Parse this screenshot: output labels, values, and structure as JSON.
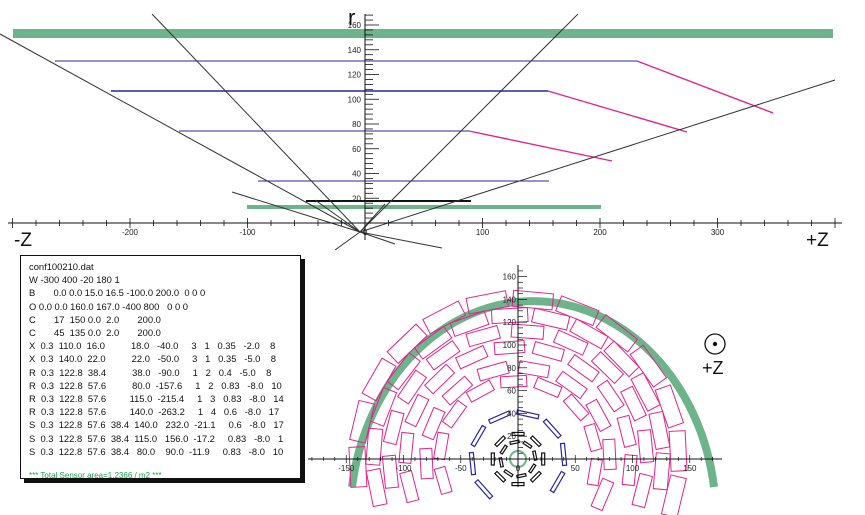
{
  "top_view": {
    "r_label": "r",
    "neg_z_label": "-Z",
    "pos_z_label": "+Z",
    "r_ticks": [
      "20",
      "40",
      "60",
      "80",
      "100",
      "120",
      "140",
      "160"
    ],
    "z_ticks": [
      "-200",
      "-100",
      "0",
      "100",
      "200",
      "300"
    ]
  },
  "bottom_view": {
    "plus_z_label": "+Z",
    "y_ticks": [
      "20",
      "40",
      "60",
      "80",
      "100",
      "120",
      "140",
      "160"
    ],
    "x_ticks": [
      "-150",
      "-100",
      "-50",
      "0",
      "50",
      "100",
      "150"
    ]
  },
  "config": {
    "lines": [
      "conf100210.dat",
      "W -300 400 -20 180 1",
      "B       0.0 0.0 15.0 16.5 -100.0 200.0  0 0 0",
      "O 0.0 0.0 160.0 167.0 -400 800   0 0 0",
      "C       17  150 0.0  2.0       200.0",
      "C       45  135 0.0  2.0       200.0",
      "X  0.3  110.0  16.0          18.0   -40.0     3   1   0.35   -2.0    8",
      "X  0.3  140.0  22.0          22.0   -50.0     3   1   0.35   -5.0    8",
      "R  0.3  122.8  38.4          38.0   -90.0     1   2   0.4   -5.0    8",
      "R  0.3  122.8  57.6          80.0  -157.6     1   2   0.83   -8.0   10",
      "R  0.3  122.8  57.6         115.0  -215.4     1   3   0.83   -8.0   14",
      "R  0.3  122.8  57.6         140.0  -263.2     1   4   0.6   -8.0   17",
      "S  0.3  122.8  57.6  38.4  140.0   232.0  -21.1     0.6   -8.0   17",
      "S  0.3  122.8  57.6  38.4  115.0   156.0  -17.2     0.83   -8.0   1",
      "S  0.3  122.8  57.6  38.4   80.0    90.0  -11.9     0.83   -8.0   10"
    ],
    "footer": "*** Total Sensor area=1.2366 / m2 ***"
  },
  "colors": {
    "magenta": "#e0248c",
    "navy": "#27289a",
    "green": "#6db48a",
    "black": "#111111"
  }
}
